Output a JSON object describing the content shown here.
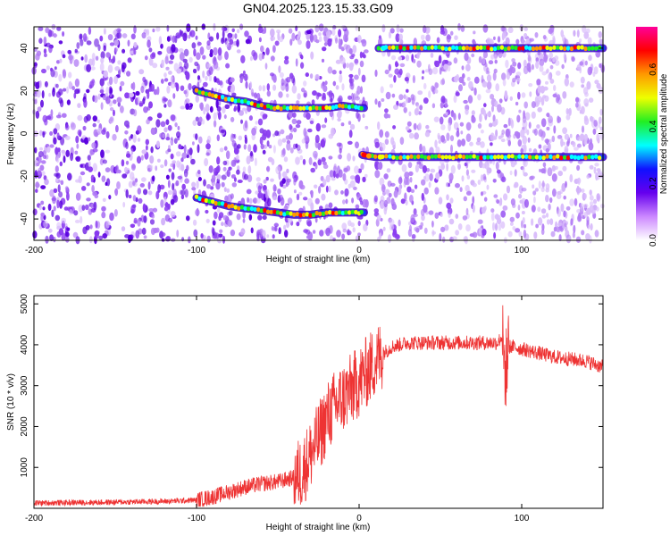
{
  "title": "GN04.2025.123.15.33.G09",
  "chart_data": [
    {
      "type": "heatmap",
      "xlabel": "Height of straight line (km)",
      "ylabel": "Frequency (Hz)",
      "xlim": [
        -200,
        150
      ],
      "ylim": [
        -50,
        50
      ],
      "xticks": [
        -200,
        -100,
        0,
        100
      ],
      "yticks": [
        -40,
        -20,
        0,
        20,
        40
      ],
      "colorbar": {
        "label": "Normalized spectral amplitude",
        "range": [
          0.0,
          0.75
        ],
        "ticks": [
          0.0,
          0.2,
          0.4,
          0.6
        ],
        "colors": [
          "#ffffff",
          "#cc88ff",
          "#6600ee",
          "#1010ff",
          "#00ffff",
          "#22ee22",
          "#eeff00",
          "#ff9900",
          "#ff0000",
          "#ff0099"
        ]
      },
      "gap_x": [
        5,
        10
      ],
      "ridges": [
        {
          "x": [
            -100,
            -90,
            -80,
            -70,
            -60,
            -50,
            -40,
            -30,
            -20,
            -10,
            0,
            3
          ],
          "y": [
            20,
            18,
            16,
            15,
            13,
            12,
            12,
            12,
            12,
            13,
            12,
            12
          ]
        },
        {
          "x": [
            -100,
            -90,
            -80,
            -70,
            -60,
            -50,
            -40,
            -30,
            -20,
            -10,
            0,
            3
          ],
          "y": [
            -30,
            -32,
            -34,
            -35,
            -36,
            -37,
            -38,
            -38,
            -37,
            -37,
            -37,
            -37
          ]
        },
        {
          "x": [
            12,
            30,
            60,
            90,
            120,
            150
          ],
          "y": [
            40,
            40,
            40,
            40,
            40,
            40
          ]
        },
        {
          "x": [
            2,
            10,
            30,
            60,
            90,
            120,
            150
          ],
          "y": [
            -10,
            -11,
            -11,
            -11,
            -11,
            -11,
            -11
          ]
        }
      ]
    },
    {
      "type": "line",
      "xlabel": "Height of straight line (km)",
      "ylabel": "SNR (10 * v/v)",
      "xlim": [
        -200,
        150
      ],
      "ylim": [
        0,
        5200
      ],
      "xticks": [
        -200,
        -100,
        0,
        100
      ],
      "yticks": [
        1000,
        2000,
        3000,
        4000,
        5000
      ],
      "color": "#ee3333",
      "x": [
        -200,
        -150,
        -120,
        -100,
        -90,
        -80,
        -70,
        -60,
        -50,
        -40,
        -35,
        -30,
        -25,
        -20,
        -15,
        -10,
        -5,
        0,
        5,
        10,
        15,
        20,
        25,
        30,
        40,
        50,
        60,
        70,
        80,
        85,
        88,
        90,
        92,
        95,
        100,
        110,
        120,
        130,
        140,
        150
      ],
      "y": [
        130,
        150,
        170,
        200,
        280,
        400,
        520,
        600,
        650,
        750,
        900,
        1300,
        1700,
        2200,
        2500,
        2700,
        2900,
        3100,
        3350,
        3600,
        3800,
        3950,
        4000,
        4050,
        4050,
        4050,
        4050,
        4050,
        4050,
        4050,
        4200,
        3300,
        3950,
        3950,
        3900,
        3800,
        3700,
        3650,
        3600,
        3450
      ]
    }
  ]
}
